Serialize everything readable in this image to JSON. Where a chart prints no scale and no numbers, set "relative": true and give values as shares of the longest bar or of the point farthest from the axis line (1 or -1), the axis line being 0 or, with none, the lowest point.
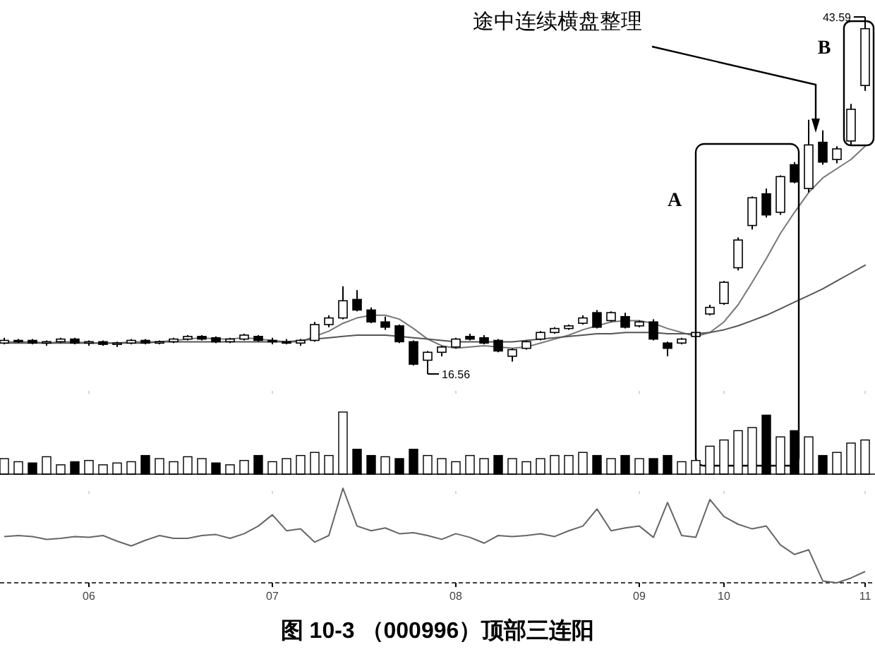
{
  "chart_data": [
    {
      "type": "candlestick",
      "tick_labels": false,
      "categories": [
        null,
        null,
        null,
        null,
        null,
        null,
        "06",
        null,
        null,
        null,
        null,
        null,
        null,
        null,
        null,
        null,
        null,
        null,
        null,
        "07",
        null,
        null,
        null,
        null,
        null,
        null,
        null,
        null,
        null,
        null,
        null,
        null,
        "08",
        null,
        null,
        null,
        null,
        null,
        null,
        null,
        null,
        null,
        null,
        null,
        null,
        "09",
        null,
        null,
        null,
        null,
        null,
        "10",
        null,
        null,
        null,
        null,
        null,
        null,
        null,
        null,
        null,
        "11"
      ],
      "ohlc": [
        [
          18.9,
          19.3,
          18.8,
          19.1
        ],
        [
          19.1,
          19.2,
          18.9,
          19.0
        ],
        [
          19.1,
          19.2,
          18.8,
          18.9
        ],
        [
          18.9,
          19.1,
          18.7,
          19.0
        ],
        [
          19.0,
          19.3,
          18.9,
          19.2
        ],
        [
          19.2,
          19.3,
          18.8,
          18.9
        ],
        [
          18.9,
          19.1,
          18.7,
          19.0
        ],
        [
          19.0,
          19.1,
          18.7,
          18.8
        ],
        [
          18.8,
          19.0,
          18.6,
          18.9
        ],
        [
          18.9,
          19.2,
          18.8,
          19.1
        ],
        [
          19.1,
          19.2,
          18.8,
          18.9
        ],
        [
          18.9,
          19.1,
          18.8,
          19.0
        ],
        [
          19.0,
          19.3,
          18.9,
          19.2
        ],
        [
          19.2,
          19.5,
          19.1,
          19.4
        ],
        [
          19.4,
          19.5,
          19.1,
          19.2
        ],
        [
          19.3,
          19.4,
          18.9,
          19.0
        ],
        [
          19.0,
          19.3,
          18.9,
          19.2
        ],
        [
          19.2,
          19.6,
          19.1,
          19.5
        ],
        [
          19.4,
          19.5,
          19.0,
          19.1
        ],
        [
          19.1,
          19.3,
          18.8,
          19.0
        ],
        [
          19.0,
          19.2,
          18.8,
          18.9
        ],
        [
          18.9,
          19.2,
          18.7,
          19.1
        ],
        [
          19.1,
          20.5,
          19.0,
          20.3
        ],
        [
          20.3,
          21.0,
          20.1,
          20.8
        ],
        [
          20.8,
          23.2,
          20.7,
          22.1
        ],
        [
          22.2,
          22.9,
          21.3,
          21.4
        ],
        [
          21.4,
          21.6,
          20.4,
          20.5
        ],
        [
          20.5,
          20.9,
          19.9,
          20.1
        ],
        [
          20.2,
          20.3,
          18.9,
          19.0
        ],
        [
          19.0,
          19.1,
          17.2,
          17.3
        ],
        [
          17.6,
          18.3,
          16.56,
          18.2
        ],
        [
          18.2,
          18.7,
          17.9,
          18.6
        ],
        [
          18.6,
          19.3,
          18.5,
          19.2
        ],
        [
          19.4,
          19.6,
          19.1,
          19.2
        ],
        [
          19.3,
          19.5,
          18.8,
          18.9
        ],
        [
          19.1,
          19.2,
          18.2,
          18.3
        ],
        [
          17.9,
          18.5,
          17.5,
          18.4
        ],
        [
          18.5,
          19.1,
          18.4,
          19.0
        ],
        [
          19.2,
          19.8,
          19.1,
          19.7
        ],
        [
          19.7,
          20.1,
          19.6,
          20.0
        ],
        [
          20.0,
          20.3,
          19.9,
          20.2
        ],
        [
          20.4,
          21.0,
          20.3,
          20.8
        ],
        [
          21.2,
          21.4,
          20.0,
          20.1
        ],
        [
          20.6,
          21.3,
          20.5,
          21.2
        ],
        [
          20.9,
          21.2,
          20.0,
          20.1
        ],
        [
          20.2,
          20.6,
          20.1,
          20.5
        ],
        [
          20.5,
          20.7,
          19.1,
          19.2
        ],
        [
          18.9,
          19.0,
          17.9,
          18.5
        ],
        [
          18.9,
          19.3,
          18.8,
          19.2
        ],
        [
          19.4,
          19.8,
          19.3,
          19.7
        ],
        [
          21.1,
          21.8,
          21.0,
          21.6
        ],
        [
          21.9,
          23.6,
          21.8,
          23.5
        ],
        [
          24.6,
          26.9,
          24.4,
          26.7
        ],
        [
          27.8,
          30.0,
          27.5,
          29.9
        ],
        [
          30.2,
          30.6,
          28.4,
          28.6
        ],
        [
          28.8,
          31.6,
          28.6,
          31.5
        ],
        [
          32.4,
          32.6,
          31.0,
          31.1
        ],
        [
          30.6,
          35.8,
          30.3,
          33.9
        ],
        [
          34.1,
          35.0,
          32.4,
          32.6
        ],
        [
          32.8,
          33.8,
          32.5,
          33.6
        ],
        [
          34.2,
          37.0,
          33.9,
          36.6
        ],
        [
          38.4,
          43.59,
          38.0,
          42.7
        ]
      ],
      "series": [
        {
          "type": "line",
          "color": "#777777",
          "values": [
            19.0,
            19.0,
            19.0,
            18.9,
            19.0,
            19.0,
            18.9,
            18.9,
            18.9,
            19.0,
            19.0,
            19.0,
            19.1,
            19.2,
            19.3,
            19.2,
            19.2,
            19.3,
            19.2,
            19.1,
            19.0,
            19.0,
            19.4,
            19.8,
            20.4,
            20.8,
            21.0,
            21.0,
            20.7,
            20.0,
            19.2,
            18.7,
            18.5,
            18.6,
            18.7,
            18.6,
            18.5,
            18.6,
            18.9,
            19.2,
            19.5,
            19.9,
            20.2,
            20.5,
            20.6,
            20.6,
            20.4,
            20.0,
            19.7,
            19.4,
            19.7,
            20.5,
            21.8,
            23.5,
            25.3,
            27.2,
            28.8,
            30.3,
            31.4,
            32.1,
            32.8,
            33.8
          ]
        },
        {
          "type": "line",
          "color": "#555555",
          "values": [
            18.9,
            18.9,
            18.9,
            18.9,
            18.9,
            18.9,
            18.9,
            18.9,
            18.9,
            18.9,
            18.9,
            19.0,
            19.0,
            19.0,
            19.0,
            19.0,
            19.0,
            19.0,
            19.0,
            19.0,
            19.0,
            19.1,
            19.2,
            19.3,
            19.4,
            19.5,
            19.5,
            19.5,
            19.4,
            19.3,
            19.2,
            19.1,
            19.0,
            19.0,
            19.0,
            19.0,
            19.0,
            19.1,
            19.2,
            19.3,
            19.4,
            19.5,
            19.6,
            19.6,
            19.7,
            19.7,
            19.7,
            19.6,
            19.6,
            19.6,
            19.7,
            19.9,
            20.2,
            20.6,
            21.0,
            21.5,
            22.0,
            22.5,
            23.0,
            23.6,
            24.2,
            24.8
          ]
        }
      ],
      "annotations": [
        "途中连续横盘整理",
        "A",
        "B",
        "16.56",
        "43.59"
      ]
    },
    {
      "type": "bar",
      "relative": true,
      "tick_labels": false,
      "categories": [
        null,
        null,
        null,
        null,
        null,
        null,
        "06",
        null,
        null,
        null,
        null,
        null,
        null,
        null,
        null,
        null,
        null,
        null,
        null,
        "07",
        null,
        null,
        null,
        null,
        null,
        null,
        null,
        null,
        null,
        null,
        null,
        null,
        "08",
        null,
        null,
        null,
        null,
        null,
        null,
        null,
        null,
        null,
        null,
        null,
        null,
        "09",
        null,
        null,
        null,
        null,
        null,
        "10",
        null,
        null,
        null,
        null,
        null,
        null,
        null,
        null,
        null,
        "11"
      ],
      "values": [
        0.25,
        0.2,
        0.18,
        0.28,
        0.15,
        0.2,
        0.22,
        0.15,
        0.18,
        0.2,
        0.3,
        0.25,
        0.2,
        0.28,
        0.25,
        0.18,
        0.15,
        0.22,
        0.3,
        0.2,
        0.25,
        0.3,
        0.35,
        0.3,
        1.0,
        0.4,
        0.3,
        0.28,
        0.25,
        0.4,
        0.3,
        0.25,
        0.2,
        0.3,
        0.25,
        0.3,
        0.25,
        0.2,
        0.25,
        0.3,
        0.3,
        0.35,
        0.3,
        0.25,
        0.3,
        0.25,
        0.25,
        0.3,
        0.2,
        0.22,
        0.45,
        0.55,
        0.7,
        0.75,
        0.95,
        0.6,
        0.7,
        0.6,
        0.3,
        0.35,
        0.5,
        0.55
      ],
      "colors": [
        "#ffffff",
        "#ffffff",
        "#000000",
        "#ffffff",
        "#ffffff",
        "#000000",
        "#ffffff",
        "#ffffff",
        "#ffffff",
        "#ffffff",
        "#000000",
        "#ffffff",
        "#ffffff",
        "#ffffff",
        "#ffffff",
        "#000000",
        "#ffffff",
        "#ffffff",
        "#000000",
        "#ffffff",
        "#ffffff",
        "#ffffff",
        "#ffffff",
        "#ffffff",
        "#ffffff",
        "#000000",
        "#000000",
        "#ffffff",
        "#000000",
        "#000000",
        "#ffffff",
        "#ffffff",
        "#ffffff",
        "#ffffff",
        "#ffffff",
        "#000000",
        "#ffffff",
        "#ffffff",
        "#ffffff",
        "#ffffff",
        "#ffffff",
        "#ffffff",
        "#000000",
        "#ffffff",
        "#000000",
        "#ffffff",
        "#000000",
        "#000000",
        "#ffffff",
        "#ffffff",
        "#ffffff",
        "#ffffff",
        "#ffffff",
        "#ffffff",
        "#000000",
        "#ffffff",
        "#000000",
        "#ffffff",
        "#000000",
        "#ffffff",
        "#ffffff",
        "#ffffff"
      ]
    },
    {
      "type": "line",
      "relative": true,
      "color": "#666666",
      "categories": [
        null,
        null,
        null,
        null,
        null,
        null,
        "06",
        null,
        null,
        null,
        null,
        null,
        null,
        null,
        null,
        null,
        null,
        null,
        null,
        "07",
        null,
        null,
        null,
        null,
        null,
        null,
        null,
        null,
        null,
        null,
        null,
        null,
        "08",
        null,
        null,
        null,
        null,
        null,
        null,
        null,
        null,
        null,
        null,
        null,
        null,
        "09",
        null,
        null,
        null,
        null,
        null,
        "10",
        null,
        null,
        null,
        null,
        null,
        null,
        null,
        null,
        null,
        "11"
      ],
      "values": [
        0.49,
        0.5,
        0.49,
        0.46,
        0.47,
        0.49,
        0.48,
        0.5,
        0.44,
        0.39,
        0.45,
        0.5,
        0.47,
        0.47,
        0.5,
        0.51,
        0.47,
        0.52,
        0.6,
        0.72,
        0.55,
        0.57,
        0.43,
        0.5,
        1.0,
        0.6,
        0.55,
        0.58,
        0.52,
        0.53,
        0.5,
        0.46,
        0.52,
        0.48,
        0.42,
        0.5,
        0.49,
        0.5,
        0.52,
        0.49,
        0.55,
        0.6,
        0.78,
        0.55,
        0.58,
        0.6,
        0.48,
        0.85,
        0.5,
        0.48,
        0.88,
        0.7,
        0.62,
        0.57,
        0.6,
        0.4,
        0.3,
        0.35,
        0.02,
        0.0,
        0.05,
        0.12
      ],
      "annotations": [
        "图 10-3 （000996）顶部三连阳"
      ]
    }
  ]
}
